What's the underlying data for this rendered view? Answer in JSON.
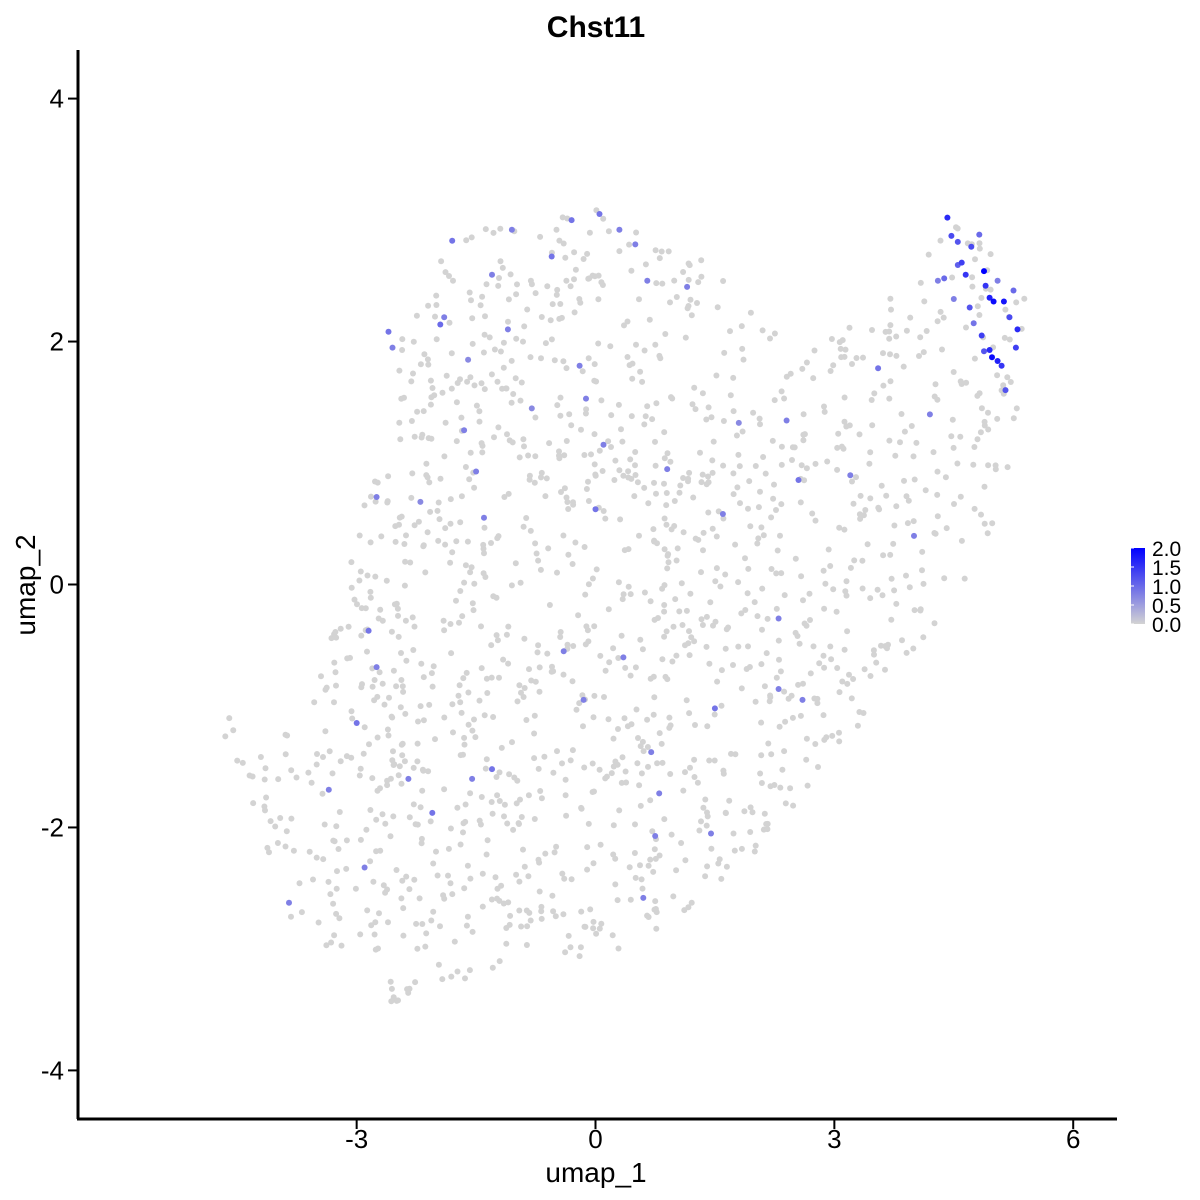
{
  "chart_data": {
    "type": "scatter",
    "title": "Chst11",
    "xlabel": "umap_1",
    "ylabel": "umap_2",
    "xlim": [
      -6.5,
      6.55
    ],
    "ylim": [
      -4.4,
      4.4
    ],
    "x_ticks": [
      -3,
      0,
      3,
      6
    ],
    "x_tick_labels": [
      "-3",
      "0",
      "3",
      "6"
    ],
    "y_ticks": [
      -4,
      -2,
      0,
      2,
      4
    ],
    "y_tick_labels": [
      "-4",
      "-2",
      "0",
      "2",
      "4"
    ],
    "grid": false,
    "legend": {
      "placement": "right",
      "type": "colorbar",
      "min": 0.0,
      "max": 2.0,
      "low_color": "#d3d3d3",
      "high_color": "#0000ff",
      "ticks": [
        0.0,
        0.5,
        1.0,
        1.5,
        2.0
      ],
      "tick_labels": [
        "0.0",
        "0.5",
        "1.0",
        "1.5",
        "2.0"
      ]
    },
    "background_cloud": {
      "description_note": "",
      "color": "#d3d3d3",
      "outline": [
        [
          -4.55,
          -1.15
        ],
        [
          -4.3,
          -1.4
        ],
        [
          -3.6,
          -1.1
        ],
        [
          -3.2,
          0.1
        ],
        [
          -2.7,
          1.1
        ],
        [
          -2.5,
          1.9
        ],
        [
          -2.2,
          2.4
        ],
        [
          -1.8,
          2.85
        ],
        [
          -1.0,
          3.0
        ],
        [
          0.0,
          3.1
        ],
        [
          0.9,
          2.9
        ],
        [
          1.5,
          2.6
        ],
        [
          2.0,
          2.2
        ],
        [
          2.6,
          1.95
        ],
        [
          3.3,
          2.15
        ],
        [
          3.9,
          2.5
        ],
        [
          4.5,
          3.05
        ],
        [
          5.0,
          2.8
        ],
        [
          5.4,
          2.4
        ],
        [
          5.3,
          1.5
        ],
        [
          5.2,
          0.9
        ],
        [
          4.9,
          0.3
        ],
        [
          4.3,
          -0.3
        ],
        [
          3.6,
          -0.9
        ],
        [
          2.8,
          -1.6
        ],
        [
          2.0,
          -2.2
        ],
        [
          0.9,
          -2.9
        ],
        [
          0.0,
          -3.05
        ],
        [
          -1.0,
          -3.15
        ],
        [
          -2.0,
          -3.3
        ],
        [
          -2.55,
          -3.45
        ],
        [
          -3.2,
          -3.1
        ],
        [
          -3.8,
          -2.8
        ],
        [
          -4.1,
          -2.4
        ]
      ],
      "approx_point_count": 1500
    },
    "expressing_points": [
      {
        "x": 4.42,
        "y": 3.02,
        "v": 1.6
      },
      {
        "x": 4.47,
        "y": 2.87,
        "v": 1.3
      },
      {
        "x": 4.55,
        "y": 2.82,
        "v": 1.2
      },
      {
        "x": 4.6,
        "y": 2.65,
        "v": 1.4
      },
      {
        "x": 4.72,
        "y": 2.78,
        "v": 1.3
      },
      {
        "x": 4.55,
        "y": 2.63,
        "v": 1.1
      },
      {
        "x": 4.82,
        "y": 2.88,
        "v": 1.0
      },
      {
        "x": 4.88,
        "y": 2.58,
        "v": 2.0
      },
      {
        "x": 4.65,
        "y": 2.55,
        "v": 1.5
      },
      {
        "x": 4.9,
        "y": 2.46,
        "v": 1.5
      },
      {
        "x": 4.95,
        "y": 2.36,
        "v": 1.7
      },
      {
        "x": 5.0,
        "y": 2.33,
        "v": 1.9
      },
      {
        "x": 5.13,
        "y": 2.33,
        "v": 1.8
      },
      {
        "x": 4.7,
        "y": 2.28,
        "v": 1.2
      },
      {
        "x": 5.2,
        "y": 2.2,
        "v": 1.3
      },
      {
        "x": 5.3,
        "y": 2.1,
        "v": 1.6
      },
      {
        "x": 4.85,
        "y": 2.05,
        "v": 1.4
      },
      {
        "x": 4.95,
        "y": 1.93,
        "v": 1.6
      },
      {
        "x": 4.98,
        "y": 1.87,
        "v": 1.9
      },
      {
        "x": 5.05,
        "y": 1.84,
        "v": 1.7
      },
      {
        "x": 4.88,
        "y": 1.92,
        "v": 1.2
      },
      {
        "x": 5.28,
        "y": 1.95,
        "v": 1.4
      },
      {
        "x": 5.1,
        "y": 1.8,
        "v": 1.5
      },
      {
        "x": 4.38,
        "y": 2.52,
        "v": 1.0
      },
      {
        "x": 4.3,
        "y": 2.5,
        "v": 0.8
      },
      {
        "x": 5.05,
        "y": 2.5,
        "v": 0.8
      },
      {
        "x": 5.25,
        "y": 2.42,
        "v": 1.0
      },
      {
        "x": 5.15,
        "y": 1.6,
        "v": 1.2
      },
      {
        "x": 4.75,
        "y": 2.15,
        "v": 0.9
      },
      {
        "x": 4.5,
        "y": 2.35,
        "v": 0.8
      },
      {
        "x": -2.6,
        "y": 2.08,
        "v": 0.9
      },
      {
        "x": -2.55,
        "y": 1.95,
        "v": 0.8
      },
      {
        "x": -1.9,
        "y": 2.2,
        "v": 0.8
      },
      {
        "x": -1.95,
        "y": 2.14,
        "v": 1.0
      },
      {
        "x": -1.8,
        "y": 2.83,
        "v": 0.9
      },
      {
        "x": -1.3,
        "y": 2.55,
        "v": 0.8
      },
      {
        "x": -1.6,
        "y": 1.85,
        "v": 0.7
      },
      {
        "x": -1.1,
        "y": 2.1,
        "v": 0.8
      },
      {
        "x": -1.05,
        "y": 2.92,
        "v": 0.8
      },
      {
        "x": -0.55,
        "y": 2.7,
        "v": 0.9
      },
      {
        "x": -0.3,
        "y": 3.0,
        "v": 0.9
      },
      {
        "x": 0.05,
        "y": 3.05,
        "v": 0.9
      },
      {
        "x": 0.3,
        "y": 2.92,
        "v": 0.8
      },
      {
        "x": 0.5,
        "y": 2.8,
        "v": 0.8
      },
      {
        "x": 0.65,
        "y": 2.5,
        "v": 0.8
      },
      {
        "x": 1.15,
        "y": 2.45,
        "v": 0.8
      },
      {
        "x": -0.2,
        "y": 1.8,
        "v": 0.8
      },
      {
        "x": -0.12,
        "y": 1.53,
        "v": 0.8
      },
      {
        "x": -1.65,
        "y": 1.27,
        "v": 0.8
      },
      {
        "x": -0.8,
        "y": 1.45,
        "v": 0.7
      },
      {
        "x": 0.1,
        "y": 1.15,
        "v": 0.8
      },
      {
        "x": -1.5,
        "y": 0.93,
        "v": 0.8
      },
      {
        "x": -2.75,
        "y": 0.72,
        "v": 0.8
      },
      {
        "x": -2.2,
        "y": 0.68,
        "v": 0.7
      },
      {
        "x": -1.4,
        "y": 0.55,
        "v": 0.8
      },
      {
        "x": 0.0,
        "y": 0.62,
        "v": 0.9
      },
      {
        "x": 0.9,
        "y": 0.95,
        "v": 0.8
      },
      {
        "x": 1.6,
        "y": 0.58,
        "v": 0.8
      },
      {
        "x": 2.4,
        "y": 1.35,
        "v": 0.8
      },
      {
        "x": 2.55,
        "y": 0.86,
        "v": 0.9
      },
      {
        "x": 3.2,
        "y": 0.9,
        "v": 0.8
      },
      {
        "x": 3.55,
        "y": 1.78,
        "v": 0.9
      },
      {
        "x": 4.2,
        "y": 1.4,
        "v": 0.8
      },
      {
        "x": 4.0,
        "y": 0.4,
        "v": 0.8
      },
      {
        "x": 1.8,
        "y": 1.33,
        "v": 0.7
      },
      {
        "x": 2.3,
        "y": -0.28,
        "v": 0.8
      },
      {
        "x": 0.35,
        "y": -0.6,
        "v": 0.8
      },
      {
        "x": -0.4,
        "y": -0.55,
        "v": 0.8
      },
      {
        "x": -2.85,
        "y": -0.38,
        "v": 0.9
      },
      {
        "x": -2.75,
        "y": -0.68,
        "v": 0.8
      },
      {
        "x": -3.0,
        "y": -1.14,
        "v": 0.9
      },
      {
        "x": -1.3,
        "y": -1.52,
        "v": 0.9
      },
      {
        "x": -1.55,
        "y": -1.6,
        "v": 0.8
      },
      {
        "x": -2.35,
        "y": -1.6,
        "v": 0.8
      },
      {
        "x": -2.05,
        "y": -1.88,
        "v": 0.9
      },
      {
        "x": -3.35,
        "y": -1.69,
        "v": 0.8
      },
      {
        "x": -0.15,
        "y": -0.95,
        "v": 0.8
      },
      {
        "x": 1.5,
        "y": -1.02,
        "v": 0.9
      },
      {
        "x": 0.7,
        "y": -1.38,
        "v": 0.8
      },
      {
        "x": 0.8,
        "y": -1.72,
        "v": 0.8
      },
      {
        "x": 1.45,
        "y": -2.05,
        "v": 0.8
      },
      {
        "x": 0.75,
        "y": -2.07,
        "v": 0.8
      },
      {
        "x": 2.3,
        "y": -0.86,
        "v": 0.8
      },
      {
        "x": 2.6,
        "y": -0.95,
        "v": 0.8
      },
      {
        "x": -2.9,
        "y": -2.33,
        "v": 0.8
      },
      {
        "x": -3.85,
        "y": -2.62,
        "v": 0.8
      },
      {
        "x": 0.6,
        "y": -2.58,
        "v": 0.8
      }
    ]
  }
}
